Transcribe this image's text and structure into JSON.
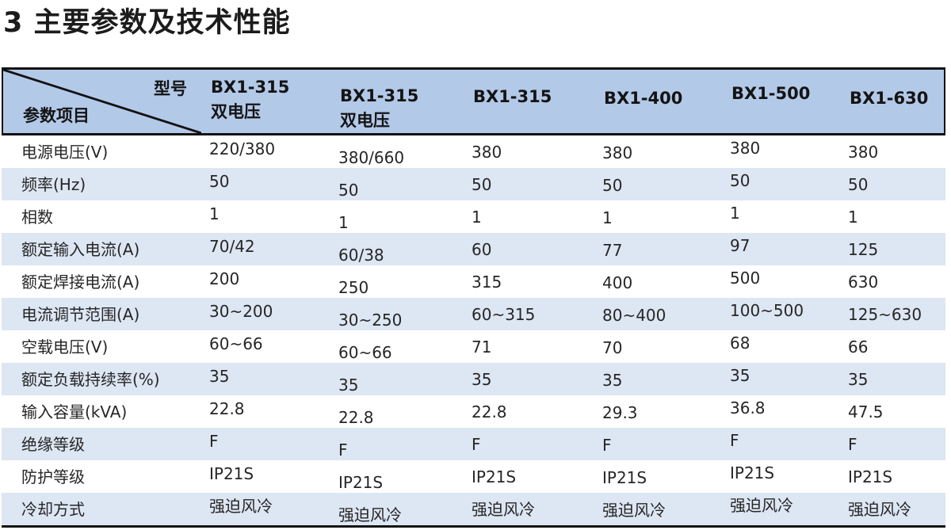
{
  "title": "3 主要参数及技术性能",
  "colors": {
    "header_bg": "#b3c9e8",
    "row_alt_bg": "#dde6f3",
    "border_dark": "#121212",
    "text": "#262626"
  },
  "table": {
    "corner": {
      "top_right_label": "型号",
      "bottom_left_label": "参数项目"
    },
    "columns": [
      {
        "label": "BX1-315",
        "sublabel": "双电压"
      },
      {
        "label": "BX1-315",
        "sublabel": "双电压"
      },
      {
        "label": "BX1-315",
        "sublabel": ""
      },
      {
        "label": "BX1-400",
        "sublabel": ""
      },
      {
        "label": "BX1-500",
        "sublabel": ""
      },
      {
        "label": "BX1-630",
        "sublabel": ""
      }
    ],
    "rows": [
      {
        "param": "电源电压(V)",
        "values": [
          "220/380",
          "380/660",
          "380",
          "380",
          "380",
          "380"
        ]
      },
      {
        "param": "频率(Hz)",
        "values": [
          "50",
          "50",
          "50",
          "50",
          "50",
          "50"
        ]
      },
      {
        "param": "相数",
        "values": [
          "1",
          "1",
          "1",
          "1",
          "1",
          "1"
        ]
      },
      {
        "param": "额定输入电流(A)",
        "values": [
          "70/42",
          "60/38",
          "60",
          "77",
          "97",
          "125"
        ]
      },
      {
        "param": "额定焊接电流(A)",
        "values": [
          "200",
          "250",
          "315",
          "400",
          "500",
          "630"
        ]
      },
      {
        "param": "电流调节范围(A)",
        "values": [
          "30~200",
          "30~250",
          "60~315",
          "80~400",
          "100~500",
          "125~630"
        ]
      },
      {
        "param": "空载电压(V)",
        "values": [
          "60~66",
          "60~66",
          "71",
          "70",
          "68",
          "66"
        ]
      },
      {
        "param": "额定负载持续率(%)",
        "values": [
          "35",
          "35",
          "35",
          "35",
          "35",
          "35"
        ]
      },
      {
        "param": "输入容量(kVA)",
        "values": [
          "22.8",
          "22.8",
          "22.8",
          "29.3",
          "36.8",
          "47.5"
        ]
      },
      {
        "param": "绝缘等级",
        "values": [
          "F",
          "F",
          "F",
          "F",
          "F",
          "F"
        ]
      },
      {
        "param": "防护等级",
        "values": [
          "IP21S",
          "IP21S",
          "IP21S",
          "IP21S",
          "IP21S",
          "IP21S"
        ]
      },
      {
        "param": "冷却方式",
        "values": [
          "强迫风冷",
          "强迫风冷",
          "强迫风冷",
          "强迫风冷",
          "强迫风冷",
          "强迫风冷"
        ]
      }
    ]
  }
}
